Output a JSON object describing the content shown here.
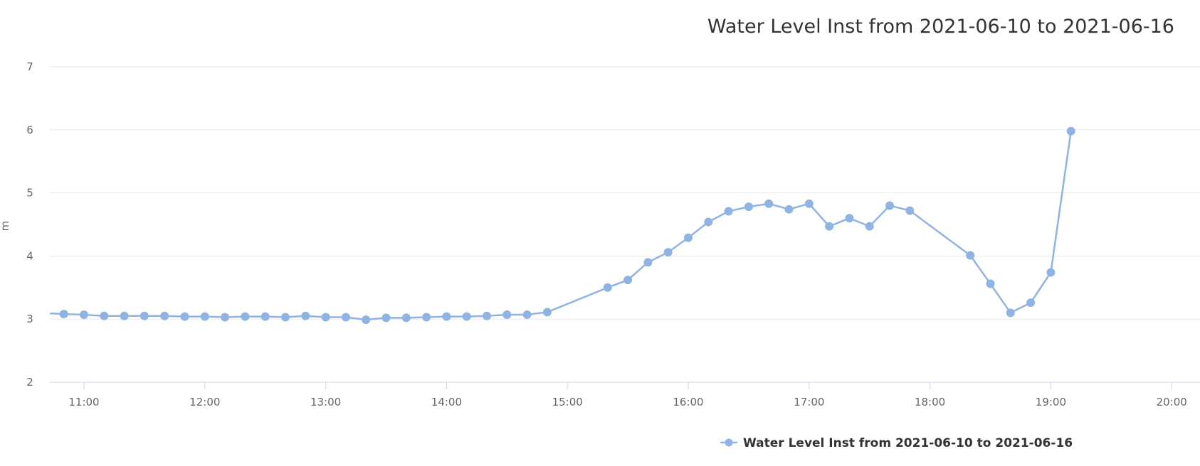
{
  "chart_data": {
    "type": "line",
    "title": "Water Level Inst from 2021-06-10 to 2021-06-16",
    "xlabel": "",
    "ylabel": "m",
    "ylim": [
      2,
      7
    ],
    "yticks": [
      "2",
      "3",
      "4",
      "5",
      "6",
      "7"
    ],
    "xticks": [
      "11:00",
      "12:00",
      "13:00",
      "14:00",
      "15:00",
      "16:00",
      "17:00",
      "18:00",
      "19:00",
      "20:00"
    ],
    "grid": true,
    "legend_position": "bottom-right",
    "color": "#8fb4e3",
    "series": [
      {
        "name": "Water Level Inst from 2021-06-10 to 2021-06-16",
        "x": [
          "10:50",
          "11:00",
          "11:10",
          "11:20",
          "11:30",
          "11:40",
          "11:50",
          "12:00",
          "12:10",
          "12:20",
          "12:30",
          "12:40",
          "12:50",
          "13:00",
          "13:10",
          "13:20",
          "13:30",
          "13:40",
          "13:50",
          "14:00",
          "14:10",
          "14:20",
          "14:30",
          "14:40",
          "14:50",
          "15:20",
          "15:30",
          "15:40",
          "15:50",
          "16:00",
          "16:10",
          "16:20",
          "16:30",
          "16:40",
          "16:50",
          "17:00",
          "17:10",
          "17:20",
          "17:30",
          "17:40",
          "17:50",
          "18:20",
          "18:30",
          "18:40",
          "18:50",
          "19:00",
          "19:10"
        ],
        "values": [
          3.08,
          3.07,
          3.05,
          3.05,
          3.05,
          3.05,
          3.04,
          3.04,
          3.03,
          3.04,
          3.04,
          3.03,
          3.05,
          3.03,
          3.03,
          2.99,
          3.02,
          3.02,
          3.03,
          3.04,
          3.04,
          3.05,
          3.07,
          3.07,
          3.11,
          3.5,
          3.62,
          3.9,
          4.06,
          4.29,
          4.54,
          4.71,
          4.78,
          4.83,
          4.74,
          4.83,
          4.47,
          4.6,
          4.47,
          4.8,
          4.72,
          4.01,
          3.56,
          3.1,
          3.26,
          3.74,
          5.98
        ]
      }
    ]
  }
}
